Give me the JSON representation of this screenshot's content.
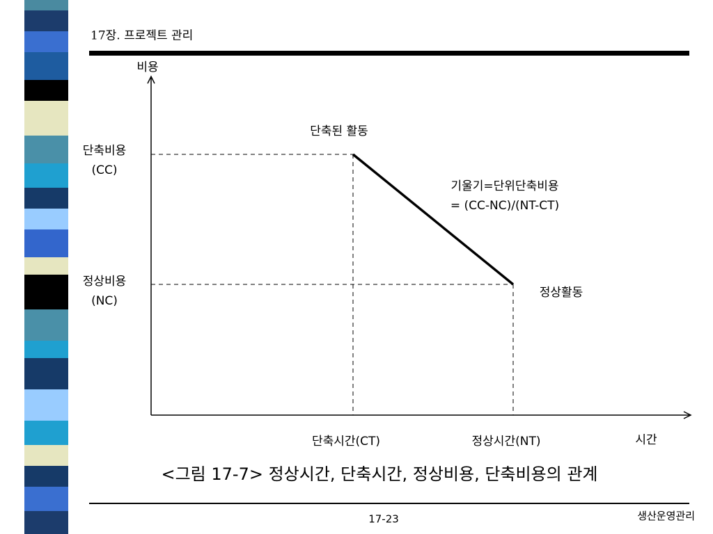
{
  "header": {
    "title": "17장. 프로젝트 관리"
  },
  "diagram": {
    "y_axis_label": "비용",
    "x_axis_label": "시간",
    "crash_cost": [
      "단축비용",
      "(CC)"
    ],
    "normal_cost": [
      "정상비용",
      "(NC)"
    ],
    "crash_activity": "단축된 활동",
    "normal_activity": "정상활동",
    "slope": [
      "기울기=단위단축비용",
      "= (CC-NC)/(NT-CT)"
    ],
    "crash_time": "단축시간(CT)",
    "normal_time": "정상시간(NT)"
  },
  "caption": "<그림 17-7> 정상시간, 단축시간, 정상비용, 단축비용의 관계",
  "footer": {
    "page": "17-23",
    "course": "생산운영관리"
  }
}
